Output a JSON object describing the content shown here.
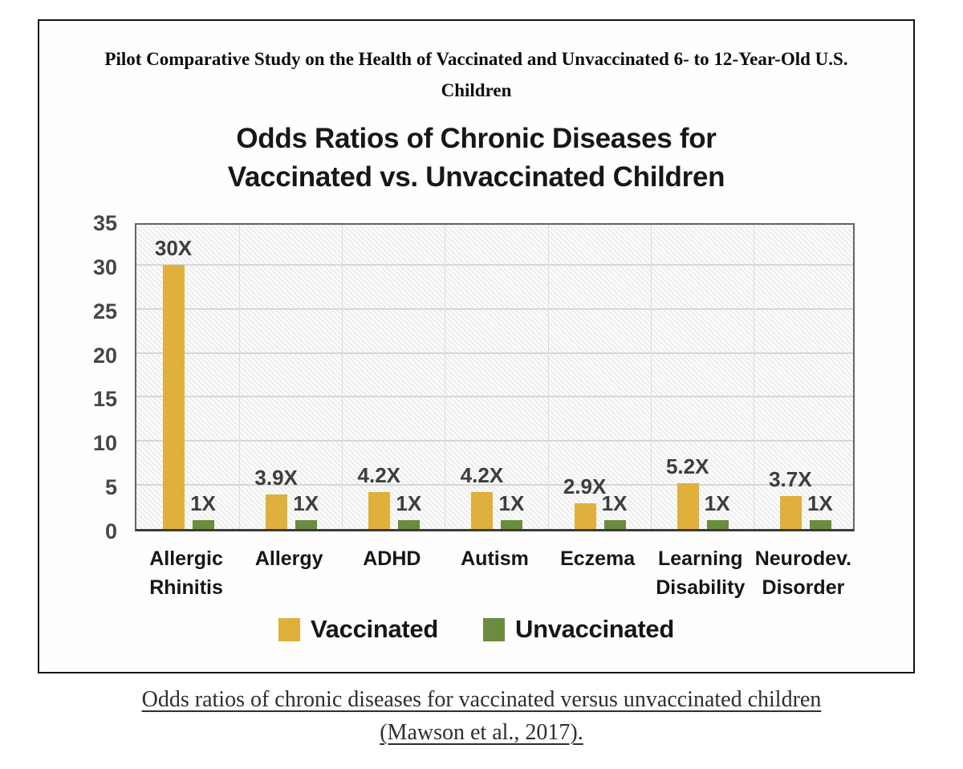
{
  "figure": {
    "header_title": "Pilot Comparative Study on the Health of Vaccinated and Unvaccinated 6- to 12-Year-Old U.S. Children",
    "caption_line1": "Odds ratios of chronic diseases for vaccinated versus unvaccinated children",
    "caption_line2": "(Mawson et al., 2017)."
  },
  "chart_data": {
    "type": "bar",
    "title": "Odds Ratios of Chronic Diseases for Vaccinated vs. Unvaccinated Children",
    "categories": [
      "Allergic Rhinitis",
      "Allergy",
      "ADHD",
      "Autism",
      "Eczema",
      "Learning Disability",
      "Neurodev. Disorder"
    ],
    "series": [
      {
        "name": "Vaccinated",
        "color": "#E0B03C",
        "values": [
          30,
          3.9,
          4.2,
          4.2,
          2.9,
          5.2,
          3.7
        ],
        "labels": [
          "30X",
          "3.9X",
          "4.2X",
          "4.2X",
          "2.9X",
          "5.2X",
          "3.7X"
        ]
      },
      {
        "name": "Unvaccinated",
        "color": "#6A8C3E",
        "values": [
          1,
          1,
          1,
          1,
          1,
          1,
          1
        ],
        "labels": [
          "1X",
          "1X",
          "1X",
          "1X",
          "1X",
          "1X",
          "1X"
        ]
      }
    ],
    "ylim": [
      0,
      35
    ],
    "yticks": [
      0,
      5,
      10,
      15,
      20,
      25,
      30,
      35
    ],
    "grid": true,
    "legend_position": "bottom",
    "plot_hatch": "diagonal",
    "colors": {
      "grid_line": "#d7d7d7",
      "plot_border": "#646464",
      "axis_line": "#3a3a3a",
      "tick_text": "#474747",
      "value_label_text": "#3d3d3d"
    }
  }
}
